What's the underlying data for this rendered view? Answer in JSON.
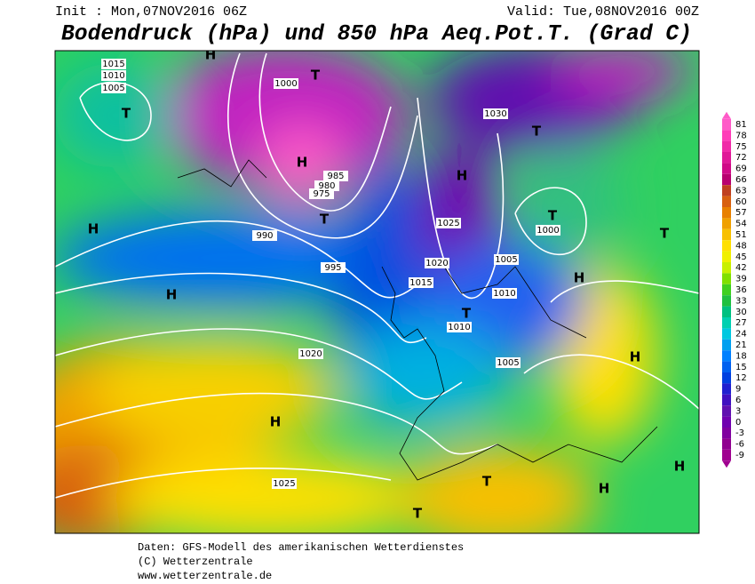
{
  "header": {
    "init": "Init : Mon,07NOV2016 06Z",
    "valid": "Valid: Tue,08NOV2016 00Z",
    "title": "Bodendruck (hPa) und 850 hPa Aeq.Pot.T. (Grad C)"
  },
  "colorbar": {
    "labels": [
      81,
      78,
      75,
      72,
      69,
      66,
      63,
      60,
      57,
      54,
      51,
      48,
      45,
      42,
      39,
      36,
      33,
      30,
      27,
      24,
      21,
      18,
      15,
      12,
      9,
      6,
      3,
      0,
      -3,
      -6,
      -9
    ],
    "colors": [
      "#ff5ac8",
      "#ff3cb8",
      "#f02aa8",
      "#e01898",
      "#d00a88",
      "#b80070",
      "#c04020",
      "#d86010",
      "#e88000",
      "#f0a000",
      "#f8c000",
      "#ffe000",
      "#f0f000",
      "#c8f000",
      "#80e000",
      "#40d020",
      "#20c040",
      "#00c080",
      "#00d0b0",
      "#00c8e0",
      "#00a0f0",
      "#0080ff",
      "#0060f0",
      "#0040e0",
      "#2020d0",
      "#4010c0",
      "#6010b0",
      "#7000b0",
      "#8000a0",
      "#900090",
      "#a00090"
    ]
  },
  "map": {
    "centers": [
      "H",
      "T",
      "T",
      "H",
      "T",
      "H",
      "H",
      "H",
      "T",
      "T",
      "H",
      "T",
      "H",
      "T",
      "H",
      "T",
      "T",
      "H",
      "H"
    ],
    "isobar_labels": [
      "1015",
      "1010",
      "1005",
      "1000",
      "995",
      "990",
      "985",
      "980",
      "975",
      "1030",
      "1025",
      "1020",
      "1015",
      "1010",
      "1005",
      "1000",
      "1025",
      "1020",
      "1010",
      "1005"
    ]
  },
  "footer": {
    "lines": [
      "Daten: GFS-Modell des amerikanischen Wetterdienstes",
      "(C) Wetterzentrale",
      "www.wetterzentrale.de"
    ]
  }
}
